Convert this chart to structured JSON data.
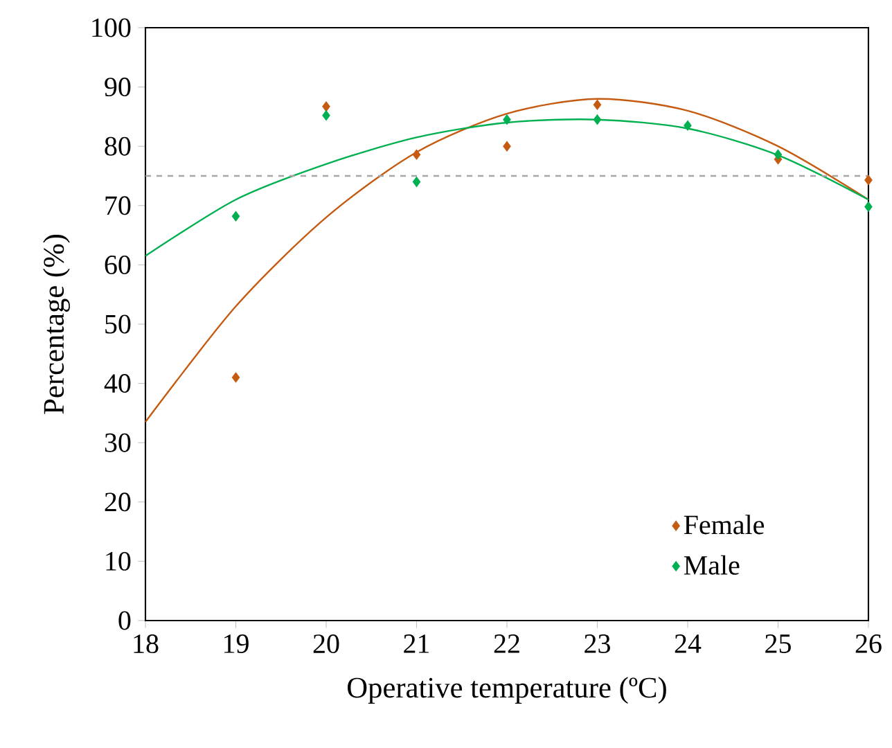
{
  "chart_data": {
    "type": "scatter",
    "xlabel": "Operative temperature (ºC)",
    "ylabel": "Percentage (%)",
    "xlim": [
      18,
      26
    ],
    "ylim": [
      0,
      100
    ],
    "xticks": [
      18,
      19,
      20,
      21,
      22,
      23,
      24,
      25,
      26
    ],
    "yticks": [
      0,
      10,
      20,
      30,
      40,
      50,
      60,
      70,
      80,
      90,
      100
    ],
    "grid": false,
    "legend": "bottom right",
    "marker": "diamond",
    "series": [
      {
        "name": "Female",
        "color": "#c55a11",
        "x": [
          19,
          20,
          21,
          22,
          23,
          25,
          26
        ],
        "values": [
          41,
          86.7,
          78.6,
          80,
          87,
          77.8,
          74.3
        ]
      },
      {
        "name": "Male",
        "color": "#00b050",
        "x": [
          19,
          20,
          21,
          22,
          23,
          24,
          25,
          26
        ],
        "values": [
          68.2,
          85.2,
          74,
          84.5,
          84.5,
          83.5,
          78.6,
          69.8
        ]
      },
      {
        "type": "line",
        "color": "#c55a11",
        "marker": "none",
        "line_style": "solid",
        "x": [
          18,
          19,
          20,
          21,
          22,
          23,
          24,
          25,
          26
        ],
        "values": [
          33.5,
          53,
          68,
          79,
          85.5,
          88,
          86,
          80,
          71
        ]
      },
      {
        "type": "line",
        "color": "#00b050",
        "marker": "none",
        "line_style": "solid",
        "x": [
          18,
          19,
          20,
          21,
          22,
          23,
          24,
          25,
          26
        ],
        "values": [
          61.5,
          71,
          77,
          81.5,
          84,
          84.5,
          83,
          78.5,
          71
        ]
      }
    ],
    "ref_lines": [
      {
        "axis": "y",
        "value": 75,
        "color": "#a6a6a6",
        "line_style": "dashed"
      }
    ]
  }
}
